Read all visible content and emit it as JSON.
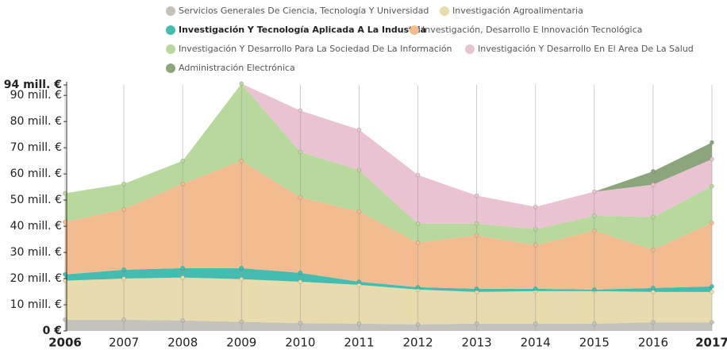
{
  "chart_data": {
    "type": "stacked_area",
    "x": [
      2006,
      2007,
      2008,
      2009,
      2010,
      2011,
      2012,
      2013,
      2014,
      2015,
      2016,
      2017
    ],
    "xlim": [
      2006,
      2017
    ],
    "xticks": [
      2006,
      2007,
      2008,
      2009,
      2010,
      2011,
      2012,
      2013,
      2014,
      2015,
      2016,
      2017
    ],
    "ylim": [
      0,
      94
    ],
    "yticks": [
      {
        "value": 0,
        "label": "0 €"
      },
      {
        "value": 10,
        "label": "10 mill. €"
      },
      {
        "value": 20,
        "label": "20 mill. €"
      },
      {
        "value": 30,
        "label": "30 mill. €"
      },
      {
        "value": 40,
        "label": "40 mill. €"
      },
      {
        "value": 50,
        "label": "50 mill. €"
      },
      {
        "value": 60,
        "label": "60 mill. €"
      },
      {
        "value": 70,
        "label": "70 mill. €"
      },
      {
        "value": 80,
        "label": "80 mill. €"
      },
      {
        "value": 90,
        "label": "90 mill. €"
      },
      {
        "value": 94,
        "label": "94 mill. €"
      }
    ],
    "grid": true,
    "series": [
      {
        "name": "Servicios Generales De Ciencia, Tecnología Y Universidad",
        "color": "#c4c2bb",
        "values": [
          4.3,
          4.3,
          4,
          3.5,
          3,
          2.8,
          2.5,
          2.8,
          2.8,
          2.8,
          3.3,
          3.3
        ]
      },
      {
        "name": "Investigación Agroalimentaria",
        "color": "#e8dcae",
        "values": [
          14.9,
          15.7,
          16.4,
          16.3,
          15.8,
          14.8,
          13.3,
          12.1,
          12.4,
          12.4,
          11.6,
          11.6
        ]
      },
      {
        "name": "Investigación Y Tecnología Aplicada A La Industria",
        "color": "#45bcb0",
        "values": [
          2.4,
          3.4,
          3.6,
          4.2,
          3.4,
          1.2,
          0.9,
          1.2,
          0.9,
          0.6,
          1.5,
          2.1
        ]
      },
      {
        "name": "Investigación, Desarrollo E Innovación Tecnológica",
        "color": "#f2bc90",
        "values": [
          20,
          23.1,
          32.2,
          41,
          28.8,
          26.8,
          17,
          20.4,
          16.7,
          22.5,
          14.6,
          24.3
        ]
      },
      {
        "name": "Investigación Y Desarrollo Para La Sociedad De La Información",
        "color": "#b9d89e",
        "values": [
          11,
          9.7,
          8.8,
          29.5,
          17.4,
          15.8,
          7.3,
          4.5,
          6.1,
          5.7,
          12.5,
          14
        ]
      },
      {
        "name": "Investigación Y Desarrollo En El Area De La Salud",
        "color": "#e9c3d1",
        "values": [
          0,
          0,
          0,
          0,
          15.8,
          15.5,
          18.6,
          10.7,
          8.5,
          9.2,
          12.4,
          10.3
        ]
      },
      {
        "name": "Administración Electrónica",
        "color": "#8ca57c",
        "values": [
          0,
          0,
          0,
          0,
          0,
          0,
          0,
          0,
          0,
          0,
          5.1,
          6.4
        ]
      }
    ]
  }
}
